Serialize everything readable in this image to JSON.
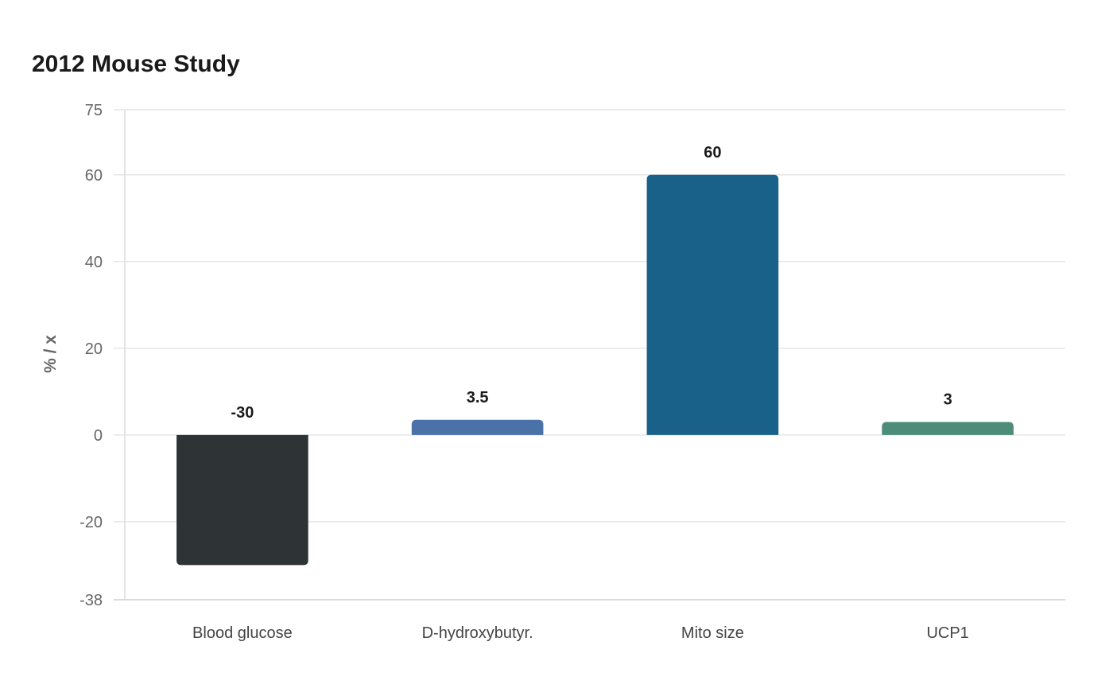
{
  "chart_data": {
    "type": "bar",
    "title": "2012 Mouse Study",
    "xlabel": "",
    "ylabel": "% / x",
    "categories": [
      "Blood glucose",
      "D-hydroxybutyr.",
      "Mito size",
      "UCP1"
    ],
    "values": [
      -30,
      3.5,
      60,
      3
    ],
    "value_labels": [
      "-30",
      "3.5",
      "60",
      "3"
    ],
    "colors": [
      "#2e3436",
      "#4a72a8",
      "#1a6189",
      "#4e8c7a"
    ],
    "ylim": [
      -38,
      75
    ],
    "yticks": [
      -38,
      -20,
      0,
      20,
      40,
      60,
      75
    ],
    "grid": true,
    "legend": "none"
  }
}
